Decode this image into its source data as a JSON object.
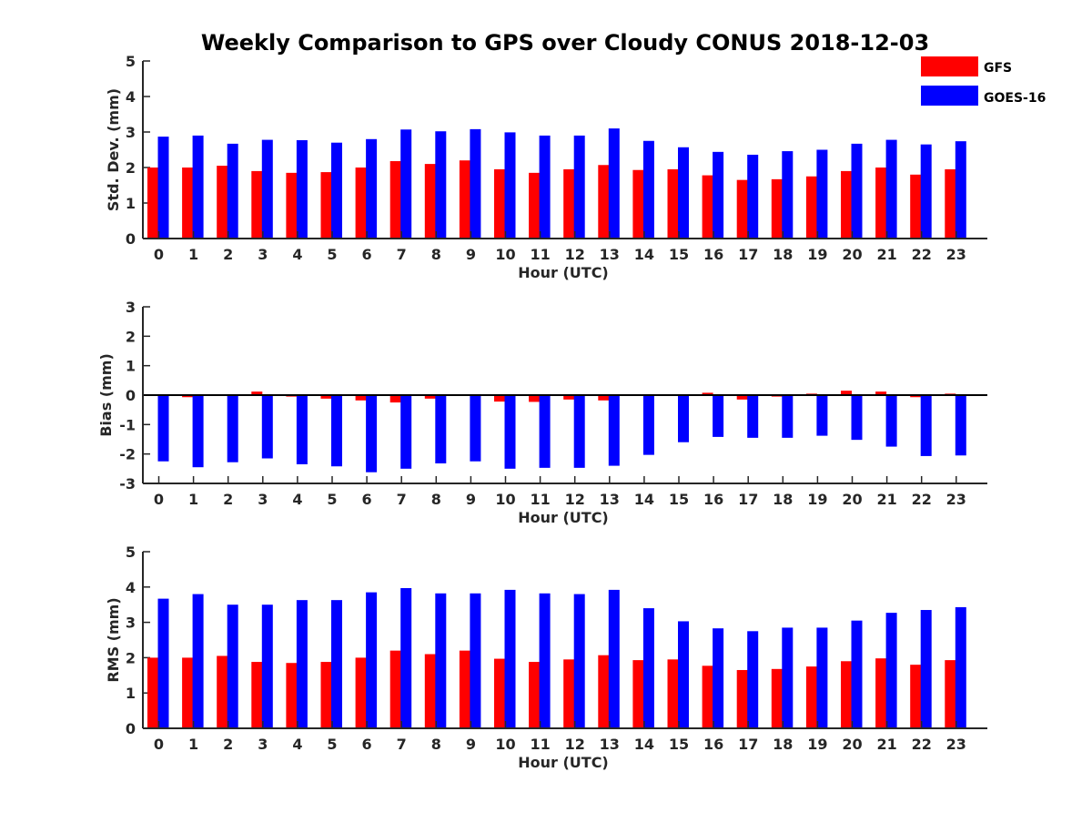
{
  "chart_data": {
    "title": "Weekly Comparison to GPS over Cloudy CONUS 2018-12-03",
    "type": "bar",
    "legend": {
      "placement": "top-right",
      "entries": [
        {
          "name": "GFS",
          "color": "#ff0000"
        },
        {
          "name": "GOES-16",
          "color": "#0000ff"
        }
      ]
    },
    "panels": [
      {
        "type": "bar",
        "xlabel": "Hour (UTC)",
        "ylabel": "Std. Dev. (mm)",
        "ylim": [
          0,
          5
        ],
        "yticks": [
          "0",
          "1",
          "2",
          "3",
          "4",
          "5"
        ],
        "categories": [
          "0",
          "1",
          "2",
          "3",
          "4",
          "5",
          "6",
          "7",
          "8",
          "9",
          "10",
          "11",
          "12",
          "13",
          "14",
          "15",
          "16",
          "17",
          "18",
          "19",
          "20",
          "21",
          "22",
          "23"
        ],
        "series": [
          {
            "name": "GFS",
            "color": "#ff0000",
            "values": [
              2.0,
              2.0,
              2.05,
              1.9,
              1.85,
              1.87,
              2.0,
              2.18,
              2.1,
              2.2,
              1.95,
              1.85,
              1.95,
              2.07,
              1.93,
              1.95,
              1.78,
              1.65,
              1.67,
              1.75,
              1.9,
              2.0,
              1.8,
              1.95
            ]
          },
          {
            "name": "GOES-16",
            "color": "#0000ff",
            "values": [
              2.87,
              2.9,
              2.67,
              2.78,
              2.77,
              2.7,
              2.8,
              3.07,
              3.02,
              3.08,
              2.99,
              2.9,
              2.9,
              3.1,
              2.75,
              2.57,
              2.44,
              2.36,
              2.46,
              2.5,
              2.67,
              2.78,
              2.65,
              2.74
            ]
          }
        ]
      },
      {
        "type": "bar",
        "xlabel": "Hour (UTC)",
        "ylabel": "Bias (mm)",
        "ylim": [
          -3,
          3
        ],
        "yticks": [
          "-3",
          "-2",
          "-1",
          "0",
          "1",
          "2",
          "3"
        ],
        "categories": [
          "0",
          "1",
          "2",
          "3",
          "4",
          "5",
          "6",
          "7",
          "8",
          "9",
          "10",
          "11",
          "12",
          "13",
          "14",
          "15",
          "16",
          "17",
          "18",
          "19",
          "20",
          "21",
          "22",
          "23"
        ],
        "series": [
          {
            "name": "GFS",
            "color": "#ff0000",
            "values": [
              -0.03,
              -0.07,
              -0.03,
              0.12,
              -0.05,
              -0.12,
              -0.18,
              -0.25,
              -0.12,
              0.02,
              -0.22,
              -0.23,
              -0.15,
              -0.18,
              -0.03,
              -0.02,
              0.08,
              -0.15,
              -0.05,
              0.05,
              0.15,
              0.12,
              -0.07,
              0.05
            ]
          },
          {
            "name": "GOES-16",
            "color": "#0000ff",
            "values": [
              -2.25,
              -2.45,
              -2.28,
              -2.15,
              -2.35,
              -2.42,
              -2.62,
              -2.5,
              -2.32,
              -2.25,
              -2.5,
              -2.47,
              -2.47,
              -2.4,
              -2.03,
              -1.6,
              -1.42,
              -1.45,
              -1.45,
              -1.38,
              -1.52,
              -1.75,
              -2.07,
              -2.05
            ]
          }
        ]
      },
      {
        "type": "bar",
        "xlabel": "Hour (UTC)",
        "ylabel": "RMS (mm)",
        "ylim": [
          0,
          5
        ],
        "yticks": [
          "0",
          "1",
          "2",
          "3",
          "4",
          "5"
        ],
        "categories": [
          "0",
          "1",
          "2",
          "3",
          "4",
          "5",
          "6",
          "7",
          "8",
          "9",
          "10",
          "11",
          "12",
          "13",
          "14",
          "15",
          "16",
          "17",
          "18",
          "19",
          "20",
          "21",
          "22",
          "23"
        ],
        "series": [
          {
            "name": "GFS",
            "color": "#ff0000",
            "values": [
              2.0,
              2.0,
              2.05,
              1.88,
              1.85,
              1.88,
              2.0,
              2.2,
              2.1,
              2.2,
              1.97,
              1.88,
              1.95,
              2.07,
              1.93,
              1.95,
              1.77,
              1.65,
              1.68,
              1.75,
              1.9,
              1.98,
              1.8,
              1.93
            ]
          },
          {
            "name": "GOES-16",
            "color": "#0000ff",
            "values": [
              3.67,
              3.8,
              3.5,
              3.5,
              3.63,
              3.63,
              3.85,
              3.97,
              3.82,
              3.82,
              3.92,
              3.82,
              3.8,
              3.92,
              3.4,
              3.03,
              2.83,
              2.75,
              2.85,
              2.85,
              3.05,
              3.27,
              3.35,
              3.43
            ]
          }
        ]
      }
    ]
  }
}
